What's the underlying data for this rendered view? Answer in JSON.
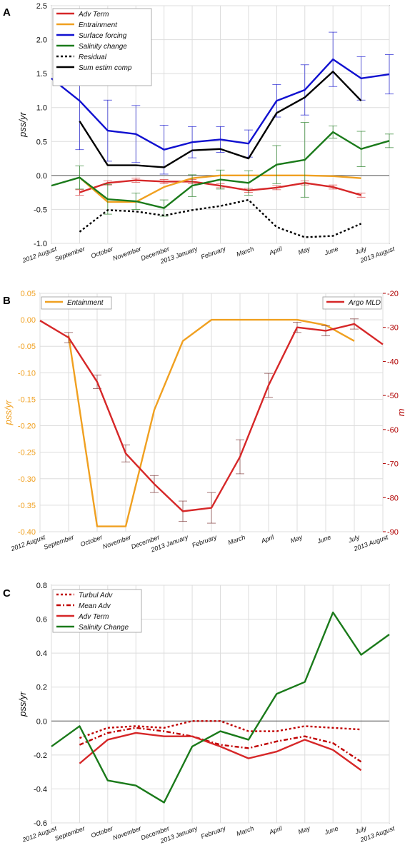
{
  "chart_data": [
    {
      "panel": "A",
      "type": "line",
      "ylabel": "pss/yr",
      "ylim": [
        -1.0,
        2.5
      ],
      "yticks": [
        "-1.0",
        "-0.5",
        "0.0",
        "0.5",
        "1.0",
        "1.5",
        "2.0",
        "2.5"
      ],
      "categories": [
        "2012 August",
        "September",
        "October",
        "November",
        "December",
        "2013 January",
        "February",
        "March",
        "April",
        "May",
        "June",
        "July",
        "2013 August"
      ],
      "grid": true,
      "legend": "top-left",
      "series": [
        {
          "name": "Adv Term",
          "color": "#d62728",
          "style": "solid",
          "values": [
            null,
            -0.25,
            -0.11,
            -0.07,
            -0.09,
            -0.09,
            -0.15,
            -0.22,
            -0.18,
            -0.11,
            -0.17,
            -0.29,
            null
          ],
          "err": [
            null,
            0.04,
            0.03,
            0.03,
            0.03,
            0.03,
            0.03,
            0.03,
            0.03,
            0.03,
            0.03,
            0.03,
            null
          ]
        },
        {
          "name": "Entrainment",
          "color": "#f0a020",
          "style": "solid",
          "values": [
            null,
            -0.03,
            -0.39,
            -0.39,
            -0.17,
            -0.04,
            0.0,
            0.0,
            0.0,
            0.0,
            -0.01,
            -0.04,
            null
          ]
        },
        {
          "name": "Surface forcing",
          "color": "#1010d0",
          "style": "solid",
          "values": [
            1.43,
            1.1,
            0.66,
            0.61,
            0.38,
            0.49,
            0.53,
            0.47,
            1.1,
            1.26,
            1.71,
            1.43,
            1.49
          ],
          "err": [
            null,
            0.72,
            0.45,
            0.42,
            0.36,
            0.23,
            0.19,
            0.2,
            0.24,
            0.37,
            0.4,
            0.32,
            0.29
          ]
        },
        {
          "name": "Salinity change",
          "color": "#1a7a1a",
          "style": "solid",
          "values": [
            -0.15,
            -0.03,
            -0.35,
            -0.38,
            -0.48,
            -0.15,
            -0.06,
            -0.11,
            0.16,
            0.23,
            0.64,
            0.39,
            0.51
          ],
          "err": [
            null,
            0.17,
            0.22,
            0.12,
            0.12,
            0.16,
            0.14,
            0.18,
            0.28,
            0.55,
            0.09,
            0.26,
            0.1
          ]
        },
        {
          "name": "Residual",
          "color": "#000000",
          "style": "dotted",
          "values": [
            null,
            -0.83,
            -0.51,
            -0.53,
            -0.59,
            -0.51,
            -0.45,
            -0.36,
            -0.76,
            -0.91,
            -0.89,
            -0.71,
            null
          ]
        },
        {
          "name": "Sum estim comp",
          "color": "#000000",
          "style": "solid",
          "values": [
            null,
            0.8,
            0.15,
            0.15,
            0.12,
            0.37,
            0.39,
            0.25,
            0.92,
            1.15,
            1.53,
            1.1,
            null
          ]
        }
      ]
    },
    {
      "panel": "B",
      "type": "line",
      "ylabel": "pss/yr",
      "ylabel_right": "m",
      "ylim": [
        -0.4,
        0.05
      ],
      "ylim_right": [
        -90,
        -20
      ],
      "yticks": [
        "0.05",
        "0.00",
        "-0.05",
        "-0.10",
        "-0.15",
        "-0.20",
        "-0.25",
        "-0.30",
        "-0.35",
        "-0.40"
      ],
      "yticks_right": [
        "-20",
        "-30",
        "-40",
        "-50",
        "-60",
        "-70",
        "-80",
        "-90"
      ],
      "categories": [
        "2012 August",
        "September",
        "October",
        "November",
        "December",
        "2013 January",
        "February",
        "March",
        "April",
        "May",
        "June",
        "July",
        "2013 August"
      ],
      "grid": true,
      "legend_left": "top-left",
      "legend_right": "top-right",
      "series": [
        {
          "name": "Entainment",
          "axis": "left",
          "color": "#f0a020",
          "values": [
            null,
            -0.03,
            -0.39,
            -0.39,
            -0.17,
            -0.04,
            0.0,
            0.0,
            0.0,
            0.0,
            -0.01,
            -0.04,
            null
          ]
        },
        {
          "name": "Argo MLD",
          "axis": "right",
          "color": "#d62728",
          "values": [
            -28,
            -33,
            -46,
            -67,
            -76,
            -84,
            -83,
            -68,
            -47,
            -30,
            -31,
            -29,
            -35
          ],
          "err": [
            null,
            1.5,
            2,
            2.5,
            2.5,
            3,
            4.5,
            5,
            3.5,
            1.5,
            1.5,
            1.5,
            null
          ]
        }
      ]
    },
    {
      "panel": "C",
      "type": "line",
      "ylabel": "pss/yr",
      "ylim": [
        -0.6,
        0.8
      ],
      "yticks": [
        "0.8",
        "0.6",
        "0.4",
        "0.2",
        "0.0",
        "-0.2",
        "-0.4",
        "-0.6"
      ],
      "categories": [
        "2012 August",
        "September",
        "October",
        "November",
        "December",
        "2013 January",
        "February",
        "March",
        "April",
        "May",
        "June",
        "July",
        "2013 August"
      ],
      "grid": true,
      "legend": "top-left",
      "series": [
        {
          "name": "Turbul Adv",
          "color": "#c00000",
          "style": "dotted",
          "values": [
            null,
            -0.1,
            -0.04,
            -0.03,
            -0.04,
            0.0,
            0.0,
            -0.06,
            -0.06,
            -0.03,
            -0.04,
            -0.05,
            null
          ]
        },
        {
          "name": "Mean Adv",
          "color": "#c00000",
          "style": "dashdot",
          "values": [
            null,
            -0.14,
            -0.07,
            -0.04,
            -0.06,
            -0.09,
            -0.14,
            -0.16,
            -0.12,
            -0.09,
            -0.13,
            -0.24,
            null
          ]
        },
        {
          "name": "Adv Term",
          "color": "#d62728",
          "style": "solid",
          "values": [
            null,
            -0.25,
            -0.11,
            -0.07,
            -0.09,
            -0.09,
            -0.15,
            -0.22,
            -0.18,
            -0.11,
            -0.17,
            -0.29,
            null
          ]
        },
        {
          "name": "Salinity Change",
          "color": "#1a7a1a",
          "style": "solid",
          "values": [
            -0.15,
            -0.03,
            -0.35,
            -0.38,
            -0.48,
            -0.15,
            -0.06,
            -0.11,
            0.16,
            0.23,
            0.64,
            0.39,
            0.51
          ]
        }
      ]
    }
  ],
  "panel_letters": [
    "A",
    "B",
    "C"
  ]
}
